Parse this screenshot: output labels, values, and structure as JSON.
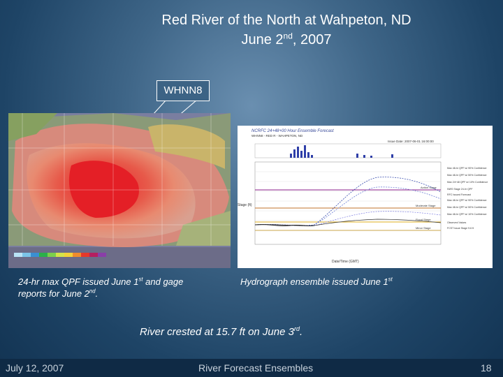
{
  "slide": {
    "title_line1": "Red River of the North at Wahpeton, ND",
    "title_line2_pre": "June 2",
    "title_line2_sup": "nd",
    "title_line2_post": ", 2007",
    "callout_label": "WHNN8",
    "caption_left_line1_pre": "24-hr max QPF issued June 1",
    "caption_left_line1_sup": "st",
    "caption_left_line1_post": " and gage",
    "caption_left_line2_pre": "reports for June 2",
    "caption_left_line2_sup": "nd",
    "caption_left_line2_post": ".",
    "caption_right_pre": "Hydrograph ensemble issued June 1",
    "caption_right_sup": "st",
    "crest_pre": "River crested at 15.7 ft on June 3",
    "crest_sup": "rd",
    "crest_post": "."
  },
  "hydrograph": {
    "title": "NCRFC 24+48+00 Hour Ensemble Forecast",
    "subtitle_line1": "WHNN8 - RED R - WAHPETON, ND",
    "issue_time": "Issue Date: 2007-06-01 16:00:00",
    "ylabel": "Stage (ft)",
    "xlabel": "Date/Time (GMT)",
    "flood_labels": [
      "Action Stage",
      "Moderate Stage",
      "Flood Stage",
      "Minor Stage"
    ],
    "legend": [
      "Max 48-hr QPF w/ 90% Confidence",
      "Max 48-hr QPF w/ 50% Confidence",
      "Max 24+48 QPF w/ 10% Confidence",
      "NWS Stage 24-hr QPF",
      "RFC Issued Forecast",
      "Max 48-hr QPF w/ 90% Confidence",
      "Max 48-hr QPF w/ 50% Confidence",
      "Max 48-hr QPF w/ 10% Confidence",
      "Observed Values"
    ],
    "legend_note": "FCST issue Stage 9.6 ft"
  },
  "footer": {
    "date": "July 12, 2007",
    "center": "River Forecast Ensembles",
    "page": "18"
  }
}
